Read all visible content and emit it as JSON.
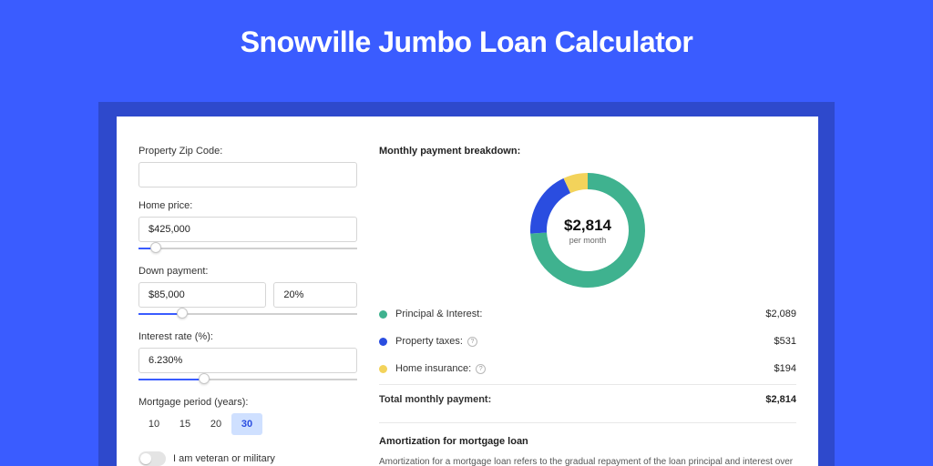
{
  "page": {
    "title": "Snowville Jumbo Loan Calculator",
    "bg_color": "#3a5cff",
    "shadow_color": "#2e49cc",
    "card_bg": "#ffffff"
  },
  "form": {
    "zip": {
      "label": "Property Zip Code:",
      "value": "",
      "slider": null
    },
    "home_price": {
      "label": "Home price:",
      "value": "$425,000",
      "slider_pct": 8
    },
    "down_payment": {
      "label": "Down payment:",
      "amount": "$85,000",
      "pct": "20%",
      "slider_pct": 20
    },
    "interest": {
      "label": "Interest rate (%):",
      "value": "6.230%",
      "slider_pct": 30
    },
    "period": {
      "label": "Mortgage period (years):",
      "options": [
        "10",
        "15",
        "20",
        "30"
      ],
      "active_index": 3
    },
    "veteran": {
      "label": "I am veteran or military",
      "on": false
    }
  },
  "breakdown": {
    "title": "Monthly payment breakdown:",
    "total_amount": "$2,814",
    "total_sub": "per month",
    "donut": {
      "slices": [
        {
          "key": "pi",
          "pct": 74,
          "color": "#3fb28f"
        },
        {
          "key": "tax",
          "pct": 19,
          "color": "#2a4de0"
        },
        {
          "key": "ins",
          "pct": 7,
          "color": "#f3d35b"
        }
      ],
      "stroke_width": 18,
      "radius": 54,
      "bg": "#ffffff"
    },
    "items": [
      {
        "label": "Principal & Interest:",
        "value": "$2,089",
        "color": "#3fb28f",
        "info": false
      },
      {
        "label": "Property taxes:",
        "value": "$531",
        "color": "#2a4de0",
        "info": true
      },
      {
        "label": "Home insurance:",
        "value": "$194",
        "color": "#f3d35b",
        "info": true
      }
    ],
    "total_label": "Total monthly payment:",
    "total_value": "$2,814"
  },
  "amort": {
    "title": "Amortization for mortgage loan",
    "text": "Amortization for a mortgage loan refers to the gradual repayment of the loan principal and interest over a specified"
  }
}
